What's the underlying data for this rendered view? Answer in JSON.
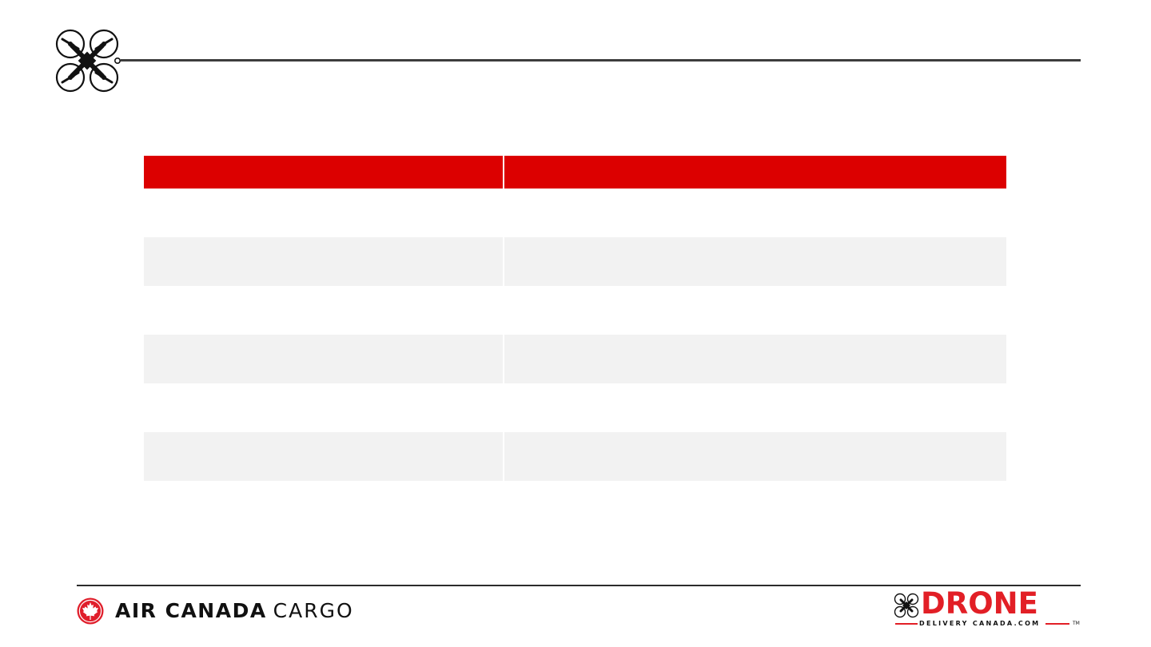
{
  "header": {
    "logo_icon": "quadcopter-drone-icon"
  },
  "table": {
    "columns": [
      "",
      ""
    ],
    "rows": [
      [
        "",
        ""
      ],
      [
        "",
        ""
      ],
      [
        "",
        ""
      ],
      [
        "",
        ""
      ],
      [
        "",
        ""
      ],
      [
        "",
        ""
      ]
    ]
  },
  "colors": {
    "accent_red": "#dc0000",
    "row_alt": "#f2f2f2",
    "rule": "#3d3d3d",
    "ddc_red": "#e21f26"
  },
  "footer": {
    "left_logo": {
      "icon": "maple-leaf-roundel-icon",
      "air_canada": "AIR CANADA",
      "cargo": "CARGO"
    },
    "right_logo": {
      "icon": "drone-icon",
      "wordmark": "DRONE",
      "tagline": "DELIVERY CANADA.COM",
      "trademark": "TM"
    }
  }
}
